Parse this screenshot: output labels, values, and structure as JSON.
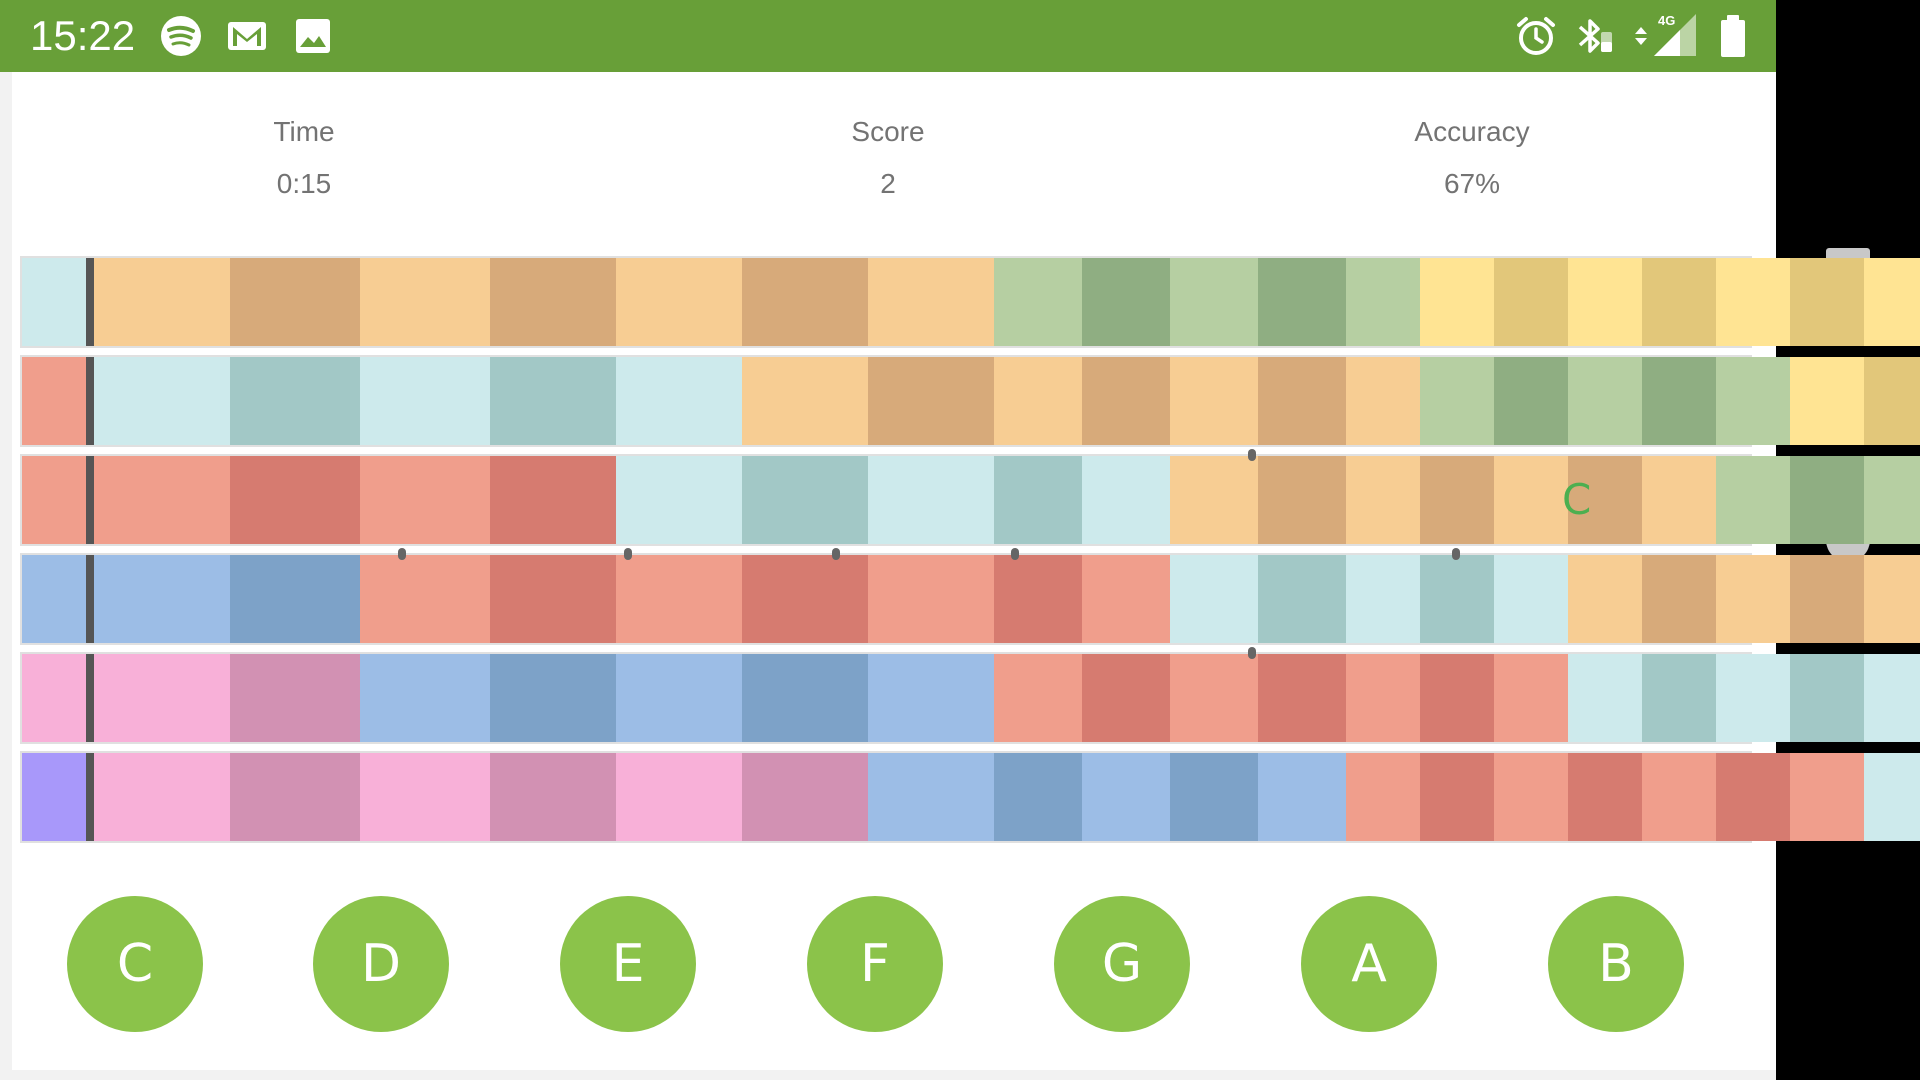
{
  "status_bar": {
    "time": "15:22",
    "left_icons": [
      "spotify-icon",
      "gmail-icon",
      "photo-icon"
    ],
    "right_icons": [
      "alarm-icon",
      "bluetooth-icon",
      "signal-4g-icon",
      "battery-icon"
    ],
    "network_label": "4G",
    "color": "#689f38"
  },
  "stats": {
    "time": {
      "label": "Time",
      "value": "0:15"
    },
    "score": {
      "label": "Score",
      "value": "2"
    },
    "accuracy": {
      "label": "Accuracy",
      "value": "67%"
    }
  },
  "feedback_note": "C",
  "feedback_color": "#4caf50",
  "note_colors": {
    "C": [
      "#f7cd93",
      "#d7aa7a"
    ],
    "D": [
      "#b6cfa2",
      "#8fae82"
    ],
    "E": [
      "#ffe493",
      "#e2c77a"
    ],
    "F": [
      "#f09e8c",
      "#d67b70"
    ],
    "G": [
      "#cdeaec",
      "#a2c8c6"
    ],
    "A": [
      "#9cbde6",
      "#7da2c8"
    ],
    "B": [
      "#f8b0d8",
      "#d291b3"
    ],
    "P": [
      "#a898fa",
      "#a898fa"
    ],
    "W": [
      "#f3f8ee",
      "#f3f8ee"
    ]
  },
  "lanes": [
    {
      "start": "G",
      "bands": "CCCCCCCDDDDDEEEEEEEW"
    },
    {
      "start": "F",
      "bands": "GGGGGCCCCCCCDDDDDEEE"
    },
    {
      "start": "F",
      "bands": "FFFFGGGGGCCCCCCCDDDD"
    },
    {
      "start": "A",
      "bands": "AAFFFFFFFGGGGGCCCCCC"
    },
    {
      "start": "B",
      "bands": "BBAAAAAFFFFFFFGGGGGC"
    },
    {
      "start": "P",
      "bands": "BBBBBBAAAAAFFFFFFFGX"
    }
  ],
  "keys": [
    "C",
    "D",
    "E",
    "F",
    "G",
    "A",
    "B"
  ],
  "nav": {
    "recent": "square-icon",
    "home": "circle-icon",
    "back": "triangle-back-icon"
  }
}
